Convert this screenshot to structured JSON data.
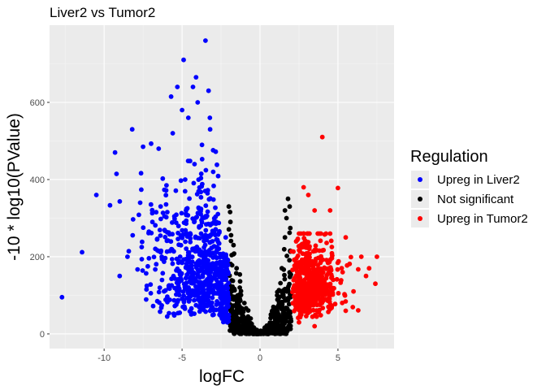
{
  "chart_data": {
    "type": "scatter",
    "title": "Liver2 vs Tumor2",
    "xlabel": "logFC",
    "ylabel": "-10 * log10(PValue)",
    "xlim": [
      -13.5,
      8.6
    ],
    "ylim": [
      -38,
      800
    ],
    "x_ticks": [
      -10,
      -5,
      0,
      5
    ],
    "x_tick_labels": [
      "-10",
      "-5",
      "0",
      "5"
    ],
    "y_ticks": [
      0,
      200,
      400,
      600
    ],
    "y_tick_labels": [
      "0",
      "200",
      "400",
      "600"
    ],
    "grid": true,
    "legend": {
      "title": "Regulation",
      "placement": "right",
      "entries": [
        {
          "label": "Upreg in Liver2",
          "color": "#0000ff"
        },
        {
          "label": "Not significant",
          "color": "#000000"
        },
        {
          "label": "Upreg in Tumor2",
          "color": "#ff0000"
        }
      ]
    },
    "series": [
      {
        "name": "Upreg in Liver2",
        "color": "#0000ff",
        "points": [
          [
            -12.7,
            95
          ],
          [
            -10.5,
            360
          ],
          [
            -9.3,
            470
          ],
          [
            -9.0,
            150
          ],
          [
            -8.5,
            200
          ],
          [
            -8.2,
            530
          ],
          [
            -7.5,
            485
          ],
          [
            -7.2,
            175
          ],
          [
            -6.9,
            290
          ],
          [
            -6.5,
            480
          ],
          [
            -6.3,
            200
          ],
          [
            -6.0,
            385
          ],
          [
            -5.7,
            615
          ],
          [
            -5.6,
            520
          ],
          [
            -5.3,
            640
          ],
          [
            -5.0,
            580
          ],
          [
            -4.9,
            710
          ],
          [
            -4.8,
            400
          ],
          [
            -4.6,
            560
          ],
          [
            -4.3,
            640
          ],
          [
            -4.2,
            440
          ],
          [
            -4.1,
            665
          ],
          [
            -4.0,
            600
          ],
          [
            -3.8,
            310
          ],
          [
            -3.5,
            760
          ],
          [
            -3.3,
            630
          ],
          [
            -3.2,
            530
          ],
          [
            -3.0,
            420
          ],
          [
            -2.8,
            290
          ],
          [
            -2.6,
            170
          ],
          [
            -2.5,
            100
          ],
          [
            -2.3,
            50
          ],
          [
            -2.1,
            30
          ],
          [
            -2.2,
            250
          ],
          [
            -3.2,
            60
          ]
        ],
        "cloud": {
          "x_range": [
            -9.2,
            -2.0
          ],
          "y_range": [
            40,
            560
          ],
          "count": 750
        }
      },
      {
        "name": "Not significant",
        "color": "#000000",
        "points": [
          [
            -2.0,
            330
          ],
          [
            -1.9,
            290
          ],
          [
            -1.7,
            230
          ],
          [
            -1.5,
            170
          ],
          [
            -1.3,
            120
          ],
          [
            -1.0,
            80
          ],
          [
            -0.6,
            40
          ],
          [
            -0.2,
            10
          ],
          [
            0,
            2
          ],
          [
            0.3,
            15
          ],
          [
            0.7,
            50
          ],
          [
            1.1,
            100
          ],
          [
            1.4,
            170
          ],
          [
            1.6,
            250
          ],
          [
            1.8,
            350
          ],
          [
            1.7,
            300
          ],
          [
            1.9,
            330
          ],
          [
            1.6,
            320
          ]
        ],
        "cloud": {
          "x_range": [
            -2.0,
            2.0
          ],
          "y_range": [
            0,
            180
          ],
          "count": 700
        }
      },
      {
        "name": "Upreg in Tumor2",
        "color": "#ff0000",
        "points": [
          [
            4.0,
            510
          ],
          [
            5.0,
            378
          ],
          [
            2.8,
            380
          ],
          [
            3.1,
            360
          ],
          [
            3.5,
            320
          ],
          [
            4.5,
            320
          ],
          [
            5.5,
            250
          ],
          [
            6.5,
            200
          ],
          [
            7.0,
            170
          ],
          [
            7.5,
            200
          ],
          [
            7.4,
            130
          ],
          [
            6.8,
            150
          ],
          [
            6.0,
            110
          ],
          [
            5.5,
            60
          ],
          [
            3.5,
            20
          ],
          [
            2.5,
            30
          ],
          [
            4.5,
            260
          ],
          [
            5.3,
            160
          ]
        ],
        "cloud": {
          "x_range": [
            2.0,
            5.8
          ],
          "y_range": [
            30,
            250
          ],
          "count": 600
        }
      }
    ]
  }
}
